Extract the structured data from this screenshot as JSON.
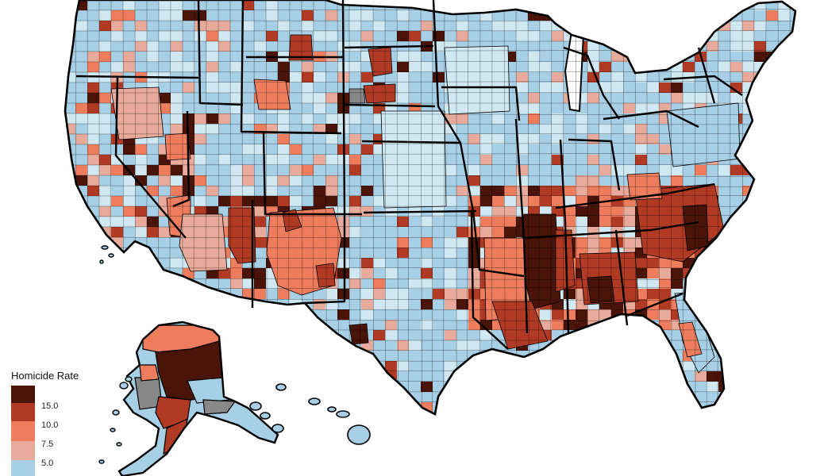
{
  "legend": {
    "title": "Homicide Rate",
    "ticks": [
      "15.0",
      "10.0",
      "7.5",
      "5.0"
    ],
    "scale": [
      {
        "threshold": 15.0,
        "color": "#4a1408"
      },
      {
        "threshold": 10.0,
        "color": "#b03a24"
      },
      {
        "threshold": 7.5,
        "color": "#ee7d5e"
      },
      {
        "threshold": 5.0,
        "color": "#e8aa9a"
      },
      {
        "threshold": 0.0,
        "color": "#a7cfe6"
      }
    ],
    "light_color": "#cfe8f2",
    "missing_color": "#888888"
  },
  "map": {
    "extent": "contiguous-us-alaska-hawaii",
    "boundary_color": "#000000"
  }
}
